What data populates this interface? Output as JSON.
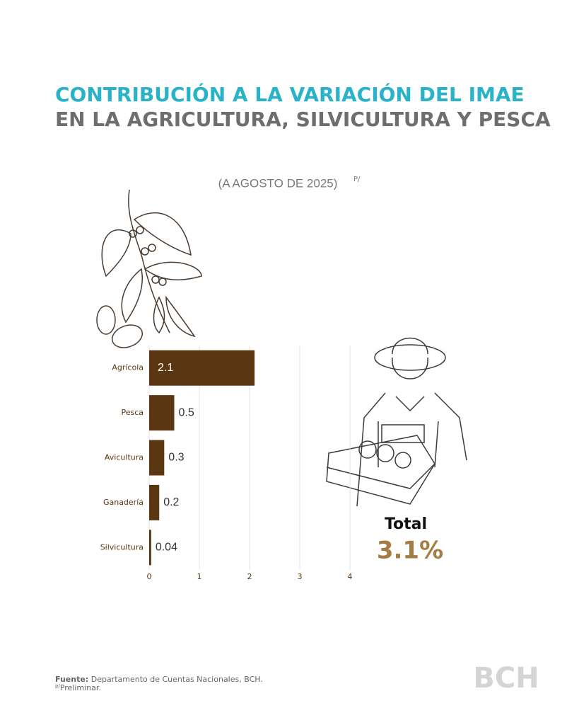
{
  "title": "CONTRIBUCIÓN A LA VARIACIÓN DEL IMAE",
  "title_line2": "EN LA AGRICULTURA, SILVICULTURA Y PESCA",
  "subtitle": "(A AGOSTO DE 2025)",
  "subtitle_note": "P/",
  "chart_data": {
    "type": "hbar",
    "categories": [
      "Agrícola",
      "Pesca",
      "Avicultura",
      "Ganadería",
      "Silvicultura"
    ],
    "values": [
      2.1,
      0.5,
      0.3,
      0.2,
      0.04
    ],
    "color": "#5a3710",
    "xlim": [
      0,
      4
    ],
    "xticks": [
      0,
      1,
      2,
      3,
      4
    ],
    "grid": true
  },
  "total": {
    "label": "Total",
    "value": "3.1%"
  },
  "footer": {
    "source_label": "Fuente:",
    "source": "Departamento de Cuentas Nacionales, BCH.",
    "note_mark": "p/",
    "note": "Preliminar."
  },
  "logo": "BCH"
}
